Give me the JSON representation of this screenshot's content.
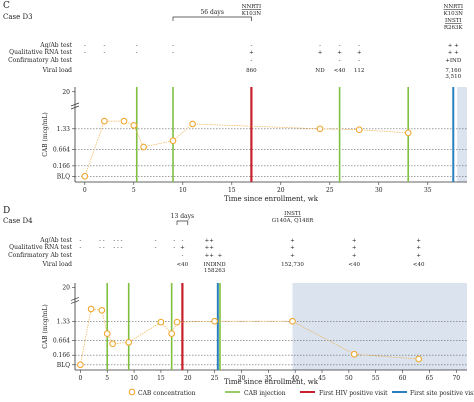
{
  "palette": {
    "cab_point": "#f0a830",
    "cab_line": "#f0b050",
    "injection": "#7fbf3f",
    "first_hiv": "#c8202c",
    "first_site": "#2a7fbf",
    "shade": "#dbe3ef",
    "grid": "#666666"
  },
  "legend": {
    "cab": "CAB concentration",
    "injection": "CAB injection",
    "first_hiv": "First HIV positive visit",
    "first_site": "First site positive visit"
  },
  "chart_data": [
    {
      "panel": "C",
      "type": "line",
      "title": "Case D3",
      "xlabel": "Time since enrollment, wk",
      "ylabel": "CAB (mcg/mL)",
      "xlim": [
        -1,
        39
      ],
      "x_ticks": [
        "0",
        "5",
        "10",
        "15",
        "20",
        "25",
        "30",
        "35"
      ],
      "y_ticks": [
        "20",
        "1.33",
        "0.664",
        "0.166",
        "BLQ"
      ],
      "row_labels": [
        "Ag/Ab test",
        "Qualitative RNA test",
        "Confirmatory Ab test",
        "Viral load"
      ],
      "bracket": {
        "label": "56 days",
        "from": 9,
        "to": 17
      },
      "annotations": [
        {
          "x": 17,
          "lines": [
            "NNRTI",
            "K103N"
          ]
        },
        {
          "x": 37.6,
          "lines": [
            "NNRTI",
            "K103N",
            "INSTI",
            "R263K"
          ]
        }
      ],
      "tests": [
        {
          "x": 0,
          "ag": "-",
          "rna": "-",
          "ab": "",
          "vl": ""
        },
        {
          "x": 2,
          "ag": "-",
          "rna": "-",
          "ab": "",
          "vl": ""
        },
        {
          "x": 5.3,
          "ag": "-",
          "rna": "-",
          "ab": "",
          "vl": ""
        },
        {
          "x": 9,
          "ag": "-",
          "rna": "-",
          "ab": "",
          "vl": ""
        },
        {
          "x": 17,
          "ag": "-",
          "rna": "+",
          "ab": "-",
          "vl": "860"
        },
        {
          "x": 24,
          "ag": "-",
          "rna": "+",
          "ab": "",
          "vl": "ND"
        },
        {
          "x": 26,
          "ag": "-",
          "rna": "+",
          "ab": "-",
          "vl": "<40"
        },
        {
          "x": 28,
          "ag": "-",
          "rna": "+",
          "ab": "-",
          "vl": "112"
        },
        {
          "x": 37.6,
          "ag": "+ +",
          "rna": "+ +",
          "ab": "+IND",
          "vl": "7,160 3,510"
        }
      ],
      "injections": [
        5.3,
        9,
        26,
        33
      ],
      "first_hiv": 17,
      "first_site": 37.6,
      "shade_from": 38,
      "series": [
        {
          "name": "CAB concentration",
          "points": [
            [
              0,
              "BLQ"
            ],
            [
              2,
              1.6
            ],
            [
              4,
              1.6
            ],
            [
              5,
              1.45
            ],
            [
              6,
              0.75
            ],
            [
              9,
              0.95
            ],
            [
              11,
              1.5
            ],
            [
              24,
              1.33
            ],
            [
              28,
              1.3
            ],
            [
              33,
              1.2
            ]
          ]
        }
      ]
    },
    {
      "panel": "D",
      "type": "line",
      "title": "Case D4",
      "xlabel": "Time since enrollment, wk",
      "ylabel": "CAB (mcg/mL)",
      "xlim": [
        -1,
        72
      ],
      "x_ticks": [
        "0",
        "5",
        "10",
        "15",
        "20",
        "25",
        "30",
        "35",
        "40",
        "45",
        "50",
        "55",
        "60",
        "65",
        "70"
      ],
      "y_ticks": [
        "20",
        "1.33",
        "0.664",
        "0.166",
        "BLQ"
      ],
      "row_labels": [
        "Ag/Ab test",
        "Qualitative RNA test",
        "Confirmatory Ab test",
        "Viral load"
      ],
      "bracket": {
        "label": "13 days",
        "from": 18,
        "to": 20
      },
      "annotations": [
        {
          "x": 39.5,
          "lines": [
            "INSTI",
            "G140A, Q148R"
          ]
        }
      ],
      "tests": [
        {
          "x": 0,
          "ag": "-",
          "rna": "-",
          "ab": "",
          "vl": ""
        },
        {
          "x": 4,
          "ag": "- -",
          "rna": "- -",
          "ab": "",
          "vl": ""
        },
        {
          "x": 7,
          "ag": "- - -",
          "rna": "- - -",
          "ab": "",
          "vl": ""
        },
        {
          "x": 14,
          "ag": "-",
          "rna": "-",
          "ab": "",
          "vl": ""
        },
        {
          "x": 17.5,
          "ag": "-",
          "rna": "-",
          "ab": "",
          "vl": ""
        },
        {
          "x": 19,
          "ag": "-",
          "rna": "+",
          "ab": "-",
          "vl": "<40"
        },
        {
          "x": 24,
          "ag": "++",
          "rna": "++",
          "ab": "++",
          "vl": "IND 158"
        },
        {
          "x": 26,
          "ag": "",
          "rna": "",
          "ab": "+",
          "vl": "IND 263"
        },
        {
          "x": 39.5,
          "ag": "+",
          "rna": "+",
          "ab": "+",
          "vl": "152,730"
        },
        {
          "x": 51,
          "ag": "+",
          "rna": "+",
          "ab": "+",
          "vl": "<40"
        },
        {
          "x": 63,
          "ag": "+",
          "rna": "+",
          "ab": "+",
          "vl": "<40"
        }
      ],
      "injections": [
        5,
        9,
        17,
        26
      ],
      "first_hiv": 19,
      "first_site": 25.6,
      "shade_from": 39.5,
      "series": [
        {
          "name": "CAB concentration",
          "points": [
            [
              0,
              "BLQ"
            ],
            [
              2,
              1.8
            ],
            [
              4,
              1.75
            ],
            [
              5,
              0.9
            ],
            [
              6,
              0.55
            ],
            [
              9,
              0.6
            ],
            [
              15,
              1.3
            ],
            [
              17,
              0.9
            ],
            [
              18,
              1.3
            ],
            [
              25,
              1.33
            ],
            [
              39.5,
              1.33
            ],
            [
              51,
              0.2
            ],
            [
              63,
              0.1
            ]
          ]
        }
      ]
    }
  ]
}
